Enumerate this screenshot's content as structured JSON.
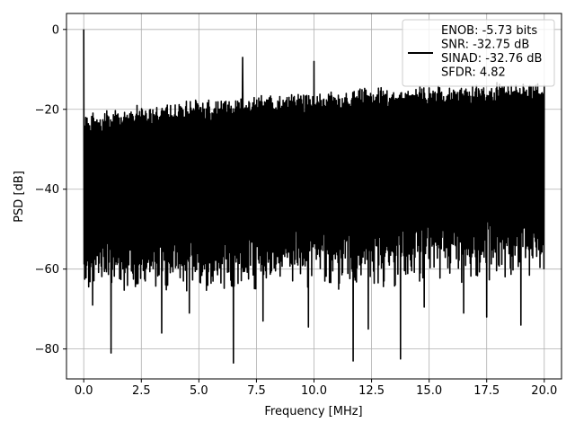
{
  "chart_data": {
    "type": "line",
    "title": "",
    "xlabel": "Frequency [MHz]",
    "ylabel": "PSD [dB]",
    "xlim": [
      -0.75,
      20.75
    ],
    "ylim": [
      -87.5,
      4.0
    ],
    "xticks": [
      0.0,
      2.5,
      5.0,
      7.5,
      10.0,
      12.5,
      15.0,
      17.5,
      20.0
    ],
    "xtick_labels": [
      "0.0",
      "2.5",
      "5.0",
      "7.5",
      "10.0",
      "12.5",
      "15.0",
      "17.5",
      "20.0"
    ],
    "yticks": [
      0,
      -20,
      -40,
      -60,
      -80
    ],
    "ytick_labels": [
      "0",
      "−20",
      "−40",
      "−60",
      "−80"
    ],
    "grid": true,
    "legend_position": "upper right",
    "series": [
      {
        "name": "ENOB: -5.73 bits\nSNR: -32.75 dB\nSINAD: -32.76 dB\nSFDR: 4.82",
        "color": "#000000",
        "x": [
          0.0,
          20.0
        ],
        "noise_top_db": [
          -23,
          -14
        ],
        "noise_floor_db": [
          -60,
          -55
        ],
        "spikes": [
          {
            "x": 0.0,
            "y": 0.0
          },
          {
            "x": 6.9,
            "y": -7.0
          },
          {
            "x": 10.0,
            "y": -8.0
          }
        ],
        "dips": [
          {
            "x": 0.38,
            "y": -69.0
          },
          {
            "x": 1.2,
            "y": -81.0
          },
          {
            "x": 3.4,
            "y": -76.0
          },
          {
            "x": 4.6,
            "y": -71.0
          },
          {
            "x": 6.5,
            "y": -83.5
          },
          {
            "x": 7.8,
            "y": -73.0
          },
          {
            "x": 9.75,
            "y": -74.5
          },
          {
            "x": 11.7,
            "y": -83.0
          },
          {
            "x": 12.35,
            "y": -75.0
          },
          {
            "x": 13.75,
            "y": -82.5
          },
          {
            "x": 14.8,
            "y": -69.5
          },
          {
            "x": 16.5,
            "y": -71.0
          },
          {
            "x": 17.5,
            "y": -72.0
          },
          {
            "x": 19.0,
            "y": -74.0
          }
        ]
      }
    ]
  }
}
